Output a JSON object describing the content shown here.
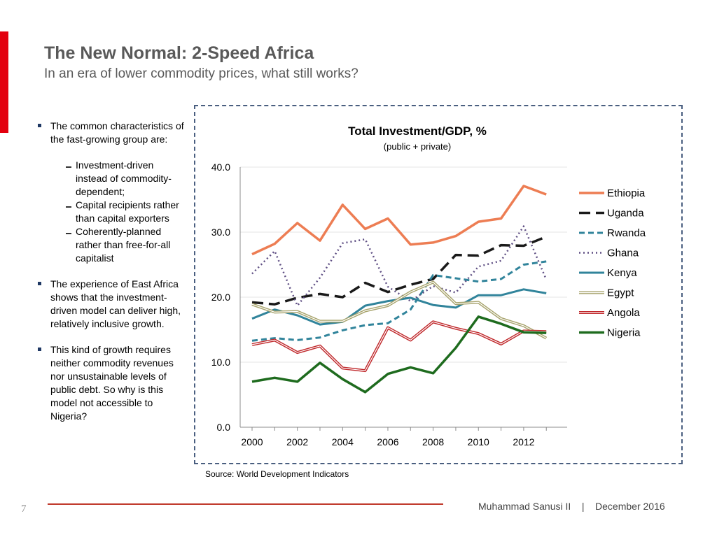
{
  "slide": {
    "title": "The New Normal: 2-Speed Africa",
    "subtitle": "In an era of lower commodity prices, what still works?",
    "page_number": "7",
    "footer": "Muhammad Sanusi II    |    December 2016",
    "source": "Source: World Development Indicators"
  },
  "bullets": {
    "b1": "The common characteristics of the fast-growing group are:",
    "s1": "Investment-driven instead of commodity-dependent;",
    "s2": "Capital recipients rather than capital exporters",
    "s3": "Coherently-planned rather than free-for-all capitalist",
    "b2": "The experience of East Africa shows that the investment-driven model can deliver high, relatively inclusive growth.",
    "b3": "This kind of growth requires neither commodity revenues nor unsustainable levels of public debt. So why is this model not accessible to Nigeria?"
  },
  "colors": {
    "accent": "#e3000f",
    "Ethiopia": "#ed7d53",
    "Uganda": "#1a1a1a",
    "Rwanda": "#31849b",
    "Ghana": "#5f4f84",
    "Kenya": "#31849b",
    "Egypt": "#a7a36c",
    "Angola": "#c0282b",
    "Nigeria": "#1e6b1e"
  },
  "chart_data": {
    "type": "line",
    "title": "Total Investment/GDP, %",
    "subtitle": "(public + private)",
    "xlabel": "",
    "ylabel": "",
    "x": [
      2000,
      2001,
      2002,
      2003,
      2004,
      2005,
      2006,
      2007,
      2008,
      2009,
      2010,
      2011,
      2012,
      2013
    ],
    "x_ticks": [
      "2000",
      "2002",
      "2004",
      "2006",
      "2008",
      "2010",
      "2012"
    ],
    "y_ticks": [
      "0.0",
      "10.0",
      "20.0",
      "30.0",
      "40.0"
    ],
    "ylim": [
      0,
      40
    ],
    "legend_position": "right",
    "series": [
      {
        "name": "Ethiopia",
        "style": "solid-thick",
        "values": [
          26.6,
          28.2,
          31.4,
          28.7,
          34.2,
          30.5,
          32.1,
          28.1,
          28.4,
          29.4,
          31.6,
          32.1,
          37.1,
          35.8
        ]
      },
      {
        "name": "Uganda",
        "style": "long-dash",
        "values": [
          19.2,
          18.9,
          19.9,
          20.5,
          20.0,
          22.2,
          20.8,
          21.9,
          22.8,
          26.5,
          26.4,
          28.0,
          27.9,
          29.3
        ]
      },
      {
        "name": "Rwanda",
        "style": "dash",
        "values": [
          13.3,
          13.7,
          13.4,
          13.8,
          14.9,
          15.7,
          16.0,
          18.1,
          23.4,
          22.9,
          22.4,
          22.8,
          25.0,
          25.5
        ]
      },
      {
        "name": "Ghana",
        "style": "dot",
        "values": [
          23.6,
          27.1,
          18.7,
          23.0,
          28.3,
          28.9,
          21.6,
          19.4,
          21.7,
          20.7,
          24.7,
          25.6,
          30.9,
          22.7
        ]
      },
      {
        "name": "Kenya",
        "style": "solid",
        "values": [
          16.7,
          18.1,
          17.2,
          15.8,
          16.2,
          18.7,
          19.4,
          19.9,
          18.8,
          18.4,
          20.3,
          20.3,
          21.2,
          20.6
        ]
      },
      {
        "name": "Egypt",
        "style": "double",
        "values": [
          18.9,
          17.7,
          17.8,
          16.3,
          16.3,
          17.9,
          18.7,
          20.8,
          22.3,
          19.0,
          19.2,
          16.7,
          15.6,
          13.7
        ]
      },
      {
        "name": "Angola",
        "style": "double",
        "values": [
          12.7,
          13.4,
          11.5,
          12.5,
          9.1,
          8.7,
          15.3,
          13.4,
          16.2,
          15.2,
          14.4,
          12.8,
          14.8,
          14.7
        ]
      },
      {
        "name": "Nigeria",
        "style": "solid-thick",
        "values": [
          7.0,
          7.6,
          7.0,
          9.9,
          7.4,
          5.4,
          8.2,
          9.2,
          8.3,
          12.2,
          17.0,
          15.9,
          14.6,
          14.5
        ]
      }
    ]
  }
}
